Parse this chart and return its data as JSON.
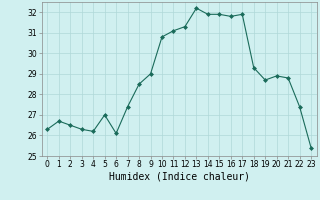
{
  "x": [
    0,
    1,
    2,
    3,
    4,
    5,
    6,
    7,
    8,
    9,
    10,
    11,
    12,
    13,
    14,
    15,
    16,
    17,
    18,
    19,
    20,
    21,
    22,
    23
  ],
  "y": [
    26.3,
    26.7,
    26.5,
    26.3,
    26.2,
    27.0,
    26.1,
    27.4,
    28.5,
    29.0,
    30.8,
    31.1,
    31.3,
    32.2,
    31.9,
    31.9,
    31.8,
    31.9,
    29.3,
    28.7,
    28.9,
    28.8,
    27.4,
    25.4
  ],
  "line_color": "#1a6b5a",
  "marker": "D",
  "marker_size": 2,
  "bg_color": "#d0f0f0",
  "grid_color": "#b0d8d8",
  "xlabel": "Humidex (Indice chaleur)",
  "ylim": [
    25,
    32.5
  ],
  "xlim": [
    -0.5,
    23.5
  ],
  "yticks": [
    25,
    26,
    27,
    28,
    29,
    30,
    31,
    32
  ],
  "xticks": [
    0,
    1,
    2,
    3,
    4,
    5,
    6,
    7,
    8,
    9,
    10,
    11,
    12,
    13,
    14,
    15,
    16,
    17,
    18,
    19,
    20,
    21,
    22,
    23
  ],
  "tick_fontsize": 5.5,
  "label_fontsize": 7
}
